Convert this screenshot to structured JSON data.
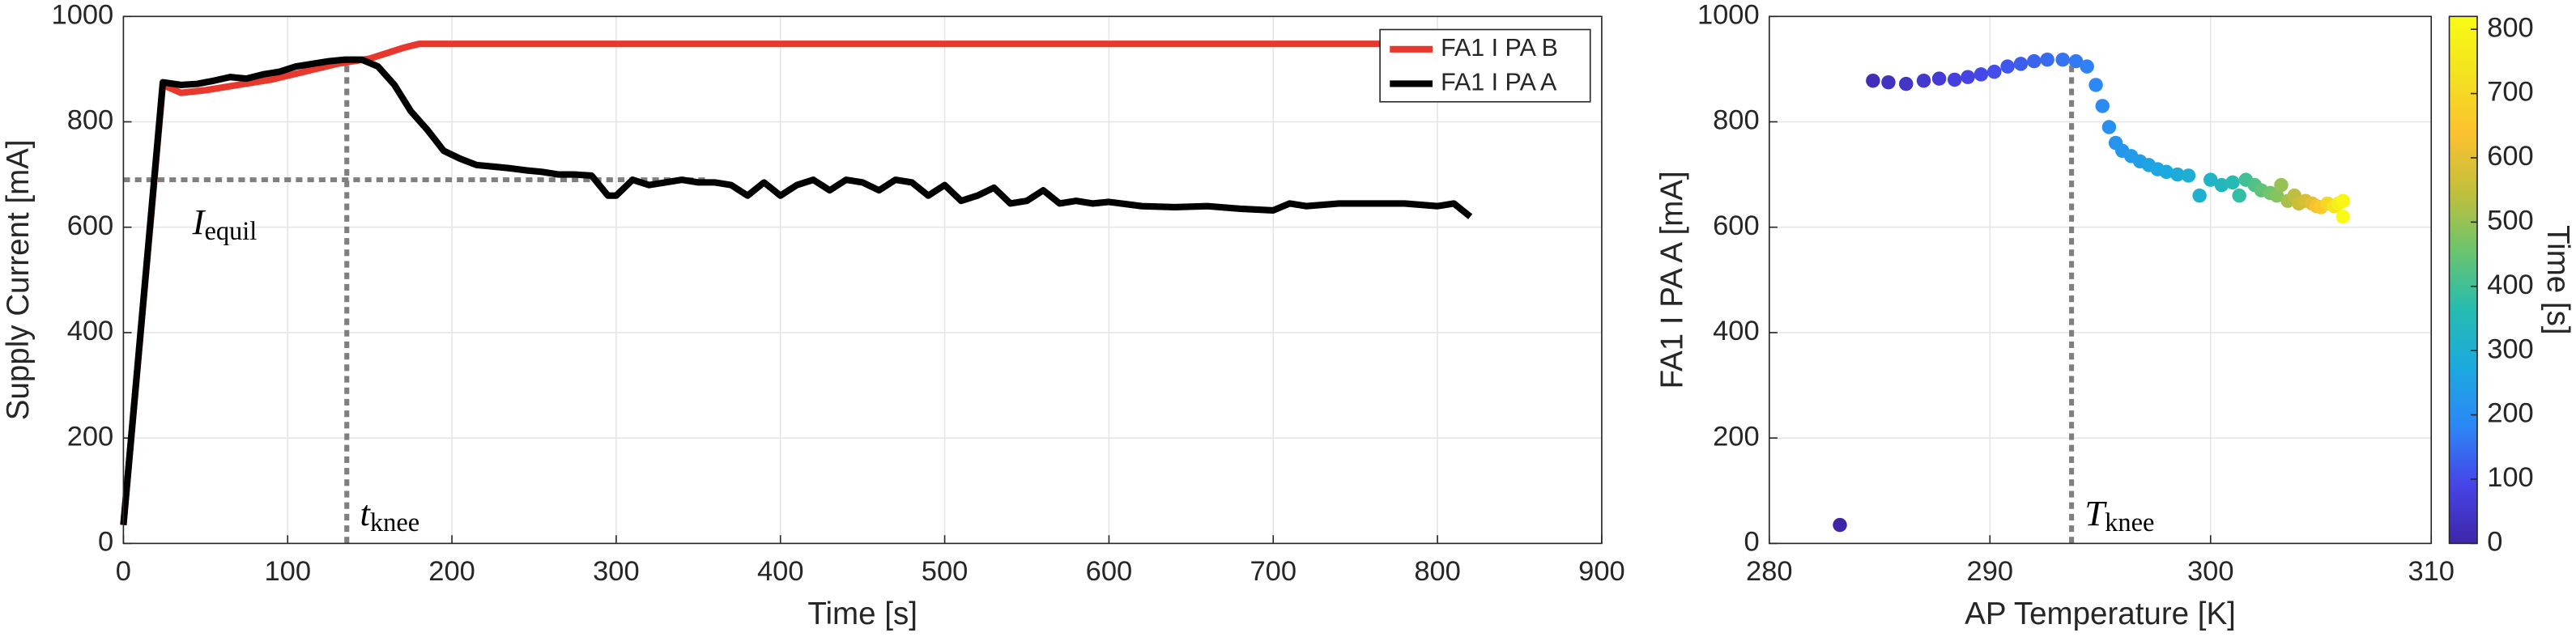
{
  "chart_data": [
    {
      "type": "line",
      "xlabel": "Time [s]",
      "ylabel": "Supply Current [mA]",
      "xlim": [
        0,
        900
      ],
      "xticks": [
        0,
        100,
        200,
        300,
        400,
        500,
        600,
        700,
        800,
        900
      ],
      "ylim": [
        0,
        1000
      ],
      "yticks": [
        0,
        200,
        400,
        600,
        800,
        1000
      ],
      "grid": true,
      "legend": "upper right",
      "series": [
        {
          "name": "FA1 I PA B",
          "color": "#e8382d",
          "x": [
            0,
            24,
            35,
            50,
            70,
            90,
            110,
            130,
            150,
            170,
            180,
            820
          ],
          "values": [
            35,
            870,
            855,
            860,
            870,
            880,
            895,
            910,
            920,
            940,
            948,
            948
          ]
        },
        {
          "name": "FA1 I PA A",
          "color": "#000000",
          "x": [
            0,
            24,
            35,
            45,
            55,
            65,
            75,
            85,
            95,
            105,
            115,
            125,
            135,
            145,
            155,
            165,
            175,
            185,
            195,
            205,
            215,
            225,
            235,
            245,
            255,
            265,
            275,
            285,
            295,
            300,
            310,
            320,
            330,
            340,
            350,
            360,
            370,
            380,
            390,
            400,
            410,
            420,
            430,
            440,
            450,
            460,
            470,
            480,
            490,
            500,
            510,
            520,
            530,
            540,
            550,
            560,
            570,
            580,
            590,
            600,
            620,
            640,
            660,
            680,
            700,
            710,
            720,
            740,
            760,
            780,
            800,
            810,
            820
          ],
          "values": [
            35,
            875,
            870,
            872,
            878,
            885,
            882,
            890,
            895,
            905,
            910,
            915,
            918,
            918,
            905,
            870,
            820,
            785,
            745,
            730,
            718,
            715,
            712,
            708,
            705,
            700,
            700,
            698,
            660,
            660,
            690,
            680,
            685,
            690,
            685,
            685,
            680,
            660,
            685,
            660,
            680,
            690,
            670,
            690,
            685,
            670,
            690,
            685,
            660,
            680,
            650,
            660,
            675,
            645,
            650,
            670,
            645,
            650,
            645,
            648,
            640,
            638,
            640,
            635,
            632,
            645,
            640,
            645,
            645,
            645,
            640,
            645,
            620
          ]
        }
      ],
      "annotations": [
        {
          "text": "I",
          "sub": "equil",
          "y": 690,
          "x": [
            0,
            355
          ]
        },
        {
          "text": "t",
          "sub": "knee",
          "x": 136,
          "y": [
            0,
            918
          ]
        }
      ]
    },
    {
      "type": "scatter",
      "xlabel": "AP Temperature [K]",
      "ylabel": "FA1 I PA A [mA]",
      "xlim": [
        280,
        310
      ],
      "xticks": [
        280,
        290,
        300,
        310
      ],
      "ylim": [
        0,
        1000
      ],
      "yticks": [
        0,
        200,
        400,
        600,
        800,
        1000
      ],
      "grid": true,
      "x": [
        283.2,
        284.7,
        285.4,
        286.2,
        287,
        287.7,
        288.4,
        289,
        289.6,
        290.2,
        290.8,
        291.4,
        292,
        292.6,
        293.3,
        293.9,
        294.4,
        294.8,
        295.1,
        295.4,
        295.7,
        296,
        296.4,
        296.8,
        297.2,
        297.6,
        298,
        298.5,
        299,
        299.5,
        300,
        300.5,
        301,
        301.3,
        301.6,
        302,
        302.3,
        302.7,
        303,
        303.2,
        303.5,
        303.8,
        304,
        304.3,
        304.6,
        304.8,
        305,
        305.3,
        305.6,
        305.8,
        306,
        306
      ],
      "values": [
        35,
        878,
        875,
        872,
        878,
        882,
        880,
        885,
        890,
        895,
        905,
        910,
        915,
        918,
        918,
        915,
        905,
        870,
        830,
        790,
        760,
        745,
        735,
        725,
        718,
        710,
        705,
        700,
        698,
        660,
        690,
        680,
        685,
        660,
        690,
        680,
        670,
        665,
        660,
        680,
        650,
        660,
        645,
        650,
        645,
        640,
        638,
        645,
        640,
        645,
        650,
        620
      ],
      "color_values": [
        0,
        24,
        35,
        45,
        55,
        65,
        75,
        85,
        95,
        105,
        115,
        125,
        135,
        145,
        155,
        165,
        175,
        185,
        195,
        205,
        215,
        225,
        235,
        245,
        255,
        265,
        275,
        285,
        295,
        305,
        320,
        340,
        360,
        380,
        400,
        420,
        440,
        460,
        480,
        500,
        520,
        540,
        560,
        580,
        600,
        630,
        660,
        700,
        740,
        780,
        800,
        820
      ],
      "colorbar_label": "Time [s]",
      "clim": [
        0,
        820
      ],
      "cticks": [
        0,
        100,
        200,
        300,
        400,
        500,
        600,
        700,
        800
      ],
      "colormap": [
        "#3e26a8",
        "#4744e8",
        "#2c87f6",
        "#1ca9df",
        "#26bcb0",
        "#6cc46d",
        "#c2bf3b",
        "#fcc12f",
        "#f3e21f",
        "#f9fb15"
      ],
      "annotations": [
        {
          "text": "T",
          "sub": "knee",
          "x": 293.7,
          "y": [
            0,
            920
          ]
        }
      ]
    }
  ]
}
